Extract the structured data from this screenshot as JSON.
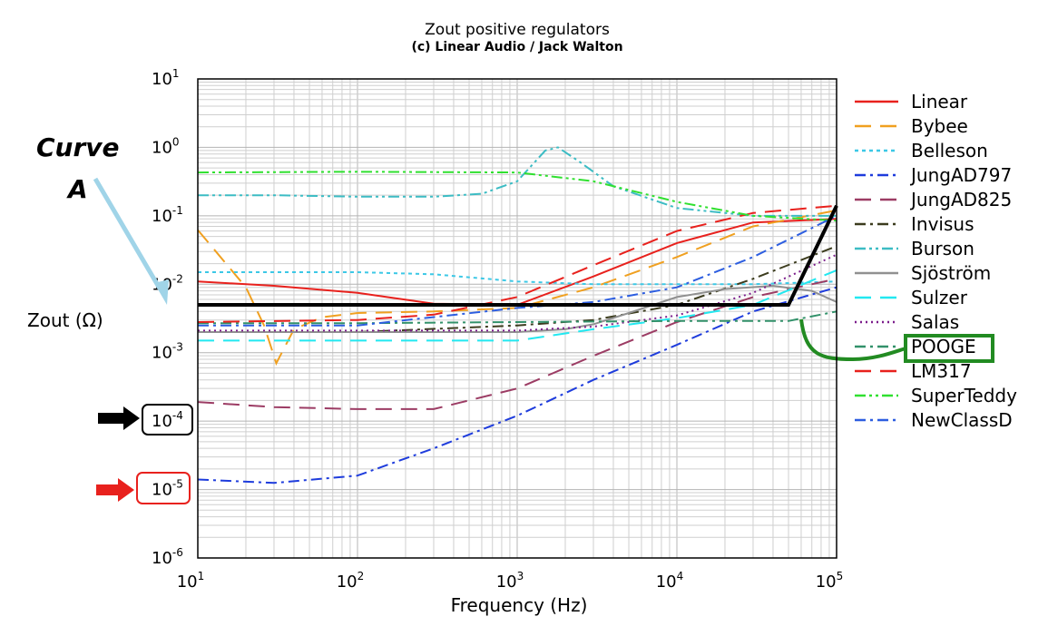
{
  "chart_data": {
    "type": "line",
    "title": "Zout positive regulators",
    "subtitle": "(c) Linear Audio / Jack Walton",
    "xlabel": "Frequency (Hz)",
    "ylabel": "Zout (Ω)",
    "xscale": "log",
    "yscale": "log",
    "xlim": [
      10,
      100000
    ],
    "ylim": [
      1e-06,
      10
    ],
    "x_ticks": [
      {
        "base": "10",
        "exp": "1"
      },
      {
        "base": "10",
        "exp": "2"
      },
      {
        "base": "10",
        "exp": "3"
      },
      {
        "base": "10",
        "exp": "4"
      },
      {
        "base": "10",
        "exp": "5"
      }
    ],
    "y_ticks": [
      {
        "base": "10",
        "exp": "1"
      },
      {
        "base": "10",
        "exp": "0"
      },
      {
        "base": "10",
        "exp": "-1"
      },
      {
        "base": "10",
        "exp": "-2"
      },
      {
        "base": "10",
        "exp": "-3"
      },
      {
        "base": "10",
        "exp": "-4"
      },
      {
        "base": "10",
        "exp": "-5"
      },
      {
        "base": "10",
        "exp": "-6"
      }
    ],
    "grid": true,
    "legend_position": "right",
    "series": [
      {
        "name": "Linear",
        "color": "#e8211d",
        "dash": "solid",
        "x": [
          10,
          30,
          100,
          300,
          1000,
          3000,
          10000,
          30000,
          100000
        ],
        "y": [
          0.011,
          0.0095,
          0.0075,
          0.0052,
          0.005,
          0.013,
          0.04,
          0.08,
          0.09
        ]
      },
      {
        "name": "Bybee",
        "color": "#f0a020",
        "dash": "long",
        "x": [
          10,
          20,
          26,
          31,
          40,
          60,
          100,
          300,
          1000,
          3000,
          10000,
          30000,
          100000
        ],
        "y": [
          0.062,
          0.009,
          0.0025,
          0.0007,
          0.0022,
          0.0033,
          0.0038,
          0.004,
          0.0045,
          0.009,
          0.025,
          0.07,
          0.12
        ]
      },
      {
        "name": "Belleson",
        "color": "#3cc8e6",
        "dash": "short",
        "x": [
          10,
          100,
          300,
          1000,
          3000,
          10000,
          30000,
          100000
        ],
        "y": [
          0.015,
          0.015,
          0.014,
          0.011,
          0.01,
          0.01,
          0.01,
          0.011
        ]
      },
      {
        "name": "JungAD797",
        "color": "#1e3cdc",
        "dash": "dashdot",
        "x": [
          10,
          30,
          100,
          300,
          1000,
          3000,
          10000,
          30000,
          100000
        ],
        "y": [
          1.4e-05,
          1.25e-05,
          1.6e-05,
          4e-05,
          0.00012,
          0.0004,
          0.0013,
          0.004,
          0.009
        ]
      },
      {
        "name": "JungAD825",
        "color": "#9c3c64",
        "dash": "long",
        "x": [
          10,
          30,
          100,
          300,
          1000,
          3000,
          10000,
          30000,
          100000
        ],
        "y": [
          0.00019,
          0.00016,
          0.00015,
          0.00015,
          0.0003,
          0.0009,
          0.0028,
          0.0065,
          0.012
        ]
      },
      {
        "name": "Invisus",
        "color": "#3c3c1e",
        "dash": "dashdot",
        "x": [
          10,
          100,
          1000,
          3000,
          10000,
          30000,
          100000
        ],
        "y": [
          0.002,
          0.002,
          0.0025,
          0.003,
          0.005,
          0.012,
          0.036
        ]
      },
      {
        "name": "Burson",
        "color": "#3cbcc4",
        "dash": "dashdotdot",
        "x": [
          10,
          30,
          100,
          300,
          600,
          1000,
          1500,
          1800,
          2500,
          4000,
          10000,
          30000,
          100000
        ],
        "y": [
          0.2,
          0.2,
          0.19,
          0.19,
          0.21,
          0.32,
          0.9,
          1.0,
          0.6,
          0.27,
          0.13,
          0.1,
          0.1
        ]
      },
      {
        "name": "Sjöström",
        "color": "#909090",
        "dash": "solid",
        "x": [
          10,
          100,
          1000,
          2000,
          3000,
          5000,
          10000,
          20000,
          40000,
          70000,
          100000
        ],
        "y": [
          0.002,
          0.002,
          0.002,
          0.0022,
          0.0026,
          0.0038,
          0.0065,
          0.0085,
          0.0095,
          0.008,
          0.0055
        ]
      },
      {
        "name": "Sulzer",
        "color": "#22e8f0",
        "dash": "long",
        "x": [
          10,
          100,
          1000,
          3000,
          10000,
          30000,
          100000
        ],
        "y": [
          0.0015,
          0.0015,
          0.0015,
          0.0022,
          0.0032,
          0.005,
          0.016
        ]
      },
      {
        "name": "Salas",
        "color": "#7c1e8c",
        "dash": "dotted",
        "x": [
          10,
          100,
          1000,
          3000,
          10000,
          30000,
          100000
        ],
        "y": [
          0.0021,
          0.0021,
          0.0021,
          0.0024,
          0.0035,
          0.0075,
          0.027
        ]
      },
      {
        "name": "POOGE",
        "color": "#32916a",
        "dash": "dashdot",
        "x": [
          10,
          100,
          1000,
          10000,
          50000,
          100000
        ],
        "y": [
          0.0027,
          0.0027,
          0.0028,
          0.0029,
          0.0029,
          0.004
        ]
      },
      {
        "name": "LM317",
        "color": "#e8211d",
        "dash": "long",
        "x": [
          10,
          100,
          300,
          1000,
          3000,
          10000,
          30000,
          100000
        ],
        "y": [
          0.0028,
          0.003,
          0.0036,
          0.0065,
          0.019,
          0.06,
          0.11,
          0.14
        ]
      },
      {
        "name": "SuperTeddy",
        "color": "#30e030",
        "dash": "dashdotdot",
        "x": [
          10,
          100,
          1000,
          3000,
          10000,
          30000,
          100000
        ],
        "y": [
          0.43,
          0.44,
          0.43,
          0.32,
          0.16,
          0.1,
          0.085
        ]
      },
      {
        "name": "NewClassD",
        "color": "#2d5ee0",
        "dash": "dashdot",
        "x": [
          10,
          100,
          1000,
          3000,
          10000,
          30000,
          100000
        ],
        "y": [
          0.0025,
          0.0025,
          0.0045,
          0.0055,
          0.009,
          0.025,
          0.1
        ]
      }
    ],
    "annotations": {
      "curve_label_line1": "Curve",
      "curve_label_line2": "A",
      "curve_a": {
        "x": [
          10,
          50000,
          100000
        ],
        "y": [
          0.005,
          0.005,
          0.14
        ]
      },
      "curve_a_color": "#000000",
      "cyan_arrow_color": "#a0d4e8",
      "black_arrow_color": "#000000",
      "red_arrow_color": "#e8211d",
      "pooge_highlight_color": "#228b22"
    }
  }
}
